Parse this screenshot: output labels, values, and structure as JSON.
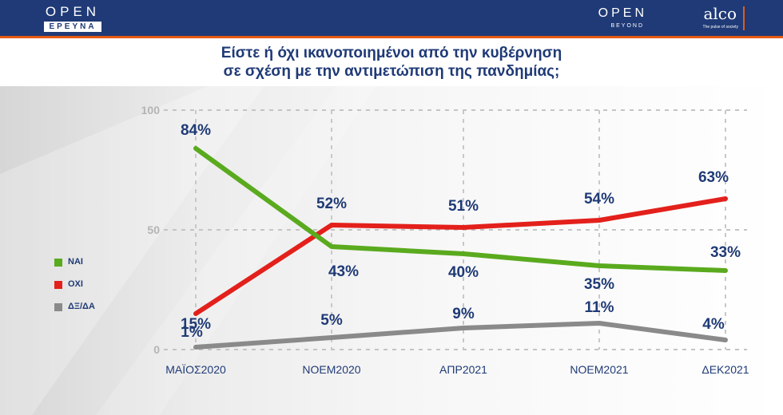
{
  "header": {
    "brand_left_top": "OPEN",
    "brand_left_bottom": "ΕΡΕΥΝΑ",
    "brand_right_open": "OPEN",
    "brand_right_beyond": "BEYOND",
    "brand_right_alco": "alco",
    "brand_right_tagline": "The pulse of society"
  },
  "title_line1": "Είστε ή όχι ικανοποιημένοι από την κυβέρνηση",
  "title_line2": "σε σχέση με την αντιμετώπιση της πανδημίας;",
  "legend": [
    {
      "label": "ΝΑΙ",
      "color": "#5aaa1e"
    },
    {
      "label": "ΟΧΙ",
      "color": "#e3201b"
    },
    {
      "label": "ΔΞ/ΔΑ",
      "color": "#8a8a8a"
    }
  ],
  "chart_data": {
    "type": "line",
    "categories": [
      "ΜΑΪΟΣ2020",
      "ΝΟΕΜ2020",
      "ΑΠΡ2021",
      "ΝΟΕΜ2021",
      "ΔΕΚ2021"
    ],
    "y_ticks": [
      "0",
      "50",
      "100"
    ],
    "ylim": [
      0,
      100
    ],
    "grid": true,
    "legend_position": "left",
    "series": [
      {
        "name": "ΝΑΙ",
        "color": "#5aaa1e",
        "values": [
          84,
          43,
          40,
          35,
          33
        ],
        "labels": [
          "84%",
          "43%",
          "40%",
          "35%",
          "33%"
        ]
      },
      {
        "name": "ΟΧΙ",
        "color": "#e3201b",
        "values": [
          15,
          52,
          51,
          54,
          63
        ],
        "labels": [
          "15%",
          "52%",
          "51%",
          "54%",
          "63%"
        ]
      },
      {
        "name": "ΔΞ/ΔΑ",
        "color": "#8a8a8a",
        "values": [
          1,
          5,
          9,
          11,
          4
        ],
        "labels": [
          "1%",
          "5%",
          "9%",
          "11%",
          "4%"
        ]
      }
    ]
  }
}
